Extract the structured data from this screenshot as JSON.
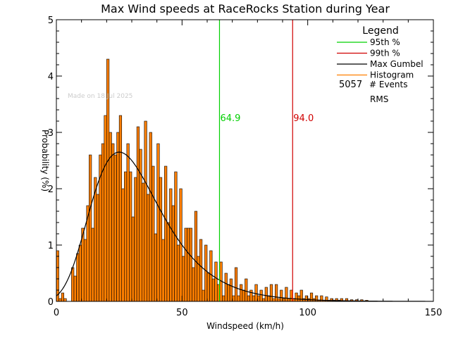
{
  "chart_data": {
    "type": "bar",
    "title": "Max Wind speeds at RaceRocks Station during Year",
    "xlabel": "Windspeed (km/h)",
    "ylabel": "Probability (%)",
    "xlim": [
      0,
      150
    ],
    "ylim": [
      0,
      5
    ],
    "x_ticks": [
      "0",
      "50",
      "100",
      "150"
    ],
    "y_ticks": [
      "0",
      "1",
      "2",
      "3",
      "4",
      "5"
    ],
    "watermark": "Made on 18 Jul 2025",
    "bin_width_kmh": 1,
    "histogram": {
      "name": "Histogram",
      "color": "#ff7f00",
      "x": [
        0,
        1,
        2,
        3,
        4,
        5,
        6,
        7,
        8,
        9,
        10,
        11,
        12,
        13,
        14,
        15,
        16,
        17,
        18,
        19,
        20,
        21,
        22,
        23,
        24,
        25,
        26,
        27,
        28,
        29,
        30,
        31,
        32,
        33,
        34,
        35,
        36,
        37,
        38,
        39,
        40,
        41,
        42,
        43,
        44,
        45,
        46,
        47,
        48,
        49,
        50,
        51,
        52,
        53,
        54,
        55,
        56,
        57,
        58,
        59,
        60,
        61,
        62,
        63,
        64,
        65,
        66,
        67,
        68,
        69,
        70,
        71,
        72,
        73,
        74,
        75,
        76,
        77,
        78,
        79,
        80,
        81,
        82,
        83,
        84,
        85,
        86,
        87,
        88,
        89,
        90,
        91,
        92,
        93,
        94,
        95,
        96,
        97,
        98,
        99,
        100,
        101,
        102,
        103,
        104,
        105,
        106,
        107,
        108,
        109,
        110,
        111,
        112,
        113,
        114,
        115,
        116,
        117,
        118,
        119,
        120,
        121,
        122,
        123,
        124,
        125,
        126,
        127,
        128,
        129,
        130,
        131,
        132,
        133,
        134,
        135,
        136,
        137,
        138,
        139,
        140
      ],
      "values": [
        0.9,
        0.05,
        0.15,
        0.05,
        0,
        0,
        0.6,
        0.45,
        0.85,
        1.0,
        1.3,
        1.1,
        1.7,
        2.6,
        1.3,
        2.2,
        1.9,
        2.6,
        2.8,
        3.3,
        4.3,
        3.0,
        2.8,
        2.6,
        3.0,
        3.3,
        2.0,
        2.3,
        2.8,
        2.3,
        1.5,
        2.2,
        3.1,
        2.7,
        2.1,
        3.2,
        1.9,
        3.0,
        2.4,
        1.2,
        2.8,
        2.2,
        1.1,
        2.4,
        1.4,
        2.0,
        1.7,
        2.3,
        1.0,
        2.0,
        0.8,
        1.3,
        1.3,
        1.3,
        0.6,
        1.6,
        0.8,
        1.1,
        0.2,
        1.0,
        0.5,
        0.9,
        0.4,
        0.7,
        0.3,
        0.7,
        0.1,
        0.5,
        0.3,
        0.4,
        0.1,
        0.6,
        0.1,
        0.3,
        0.2,
        0.4,
        0.1,
        0.2,
        0.1,
        0.3,
        0.1,
        0.2,
        0.05,
        0.25,
        0.1,
        0.3,
        0.05,
        0.3,
        0.05,
        0.2,
        0.05,
        0.25,
        0.05,
        0.2,
        0.05,
        0.15,
        0.1,
        0.2,
        0.05,
        0.1,
        0.05,
        0.15,
        0.05,
        0.1,
        0.02,
        0.1,
        0.02,
        0.08,
        0.02,
        0.05,
        0.02,
        0.05,
        0.02,
        0.05,
        0.01,
        0.05,
        0.01,
        0.03,
        0.01,
        0.03,
        0,
        0.03,
        0,
        0.02,
        0,
        0,
        0,
        0,
        0,
        0,
        0,
        0,
        0,
        0,
        0,
        0,
        0,
        0,
        0,
        0,
        0
      ]
    },
    "gumbel": {
      "name": "Max Gumbel",
      "color": "#000000",
      "mode_kmh": 25,
      "scale_kmh": 13.8
    },
    "percentiles": [
      {
        "name": "95th %",
        "value": 64.9,
        "label": "64.9",
        "color": "#00d000"
      },
      {
        "name": "99th %",
        "value": 94.0,
        "label": "94.0",
        "color": "#d00000"
      }
    ],
    "legend": {
      "title": "Legend",
      "placement": "top-right",
      "items": [
        {
          "label": "95th %",
          "color": "#00d000"
        },
        {
          "label": "99th %",
          "color": "#d00000"
        },
        {
          "label": "Max Gumbel",
          "color": "#000000"
        },
        {
          "label": "Histogram",
          "color": "#ff7f00"
        }
      ],
      "events_count": "5057",
      "events_label": "# Events",
      "rms_label": "RMS"
    }
  }
}
